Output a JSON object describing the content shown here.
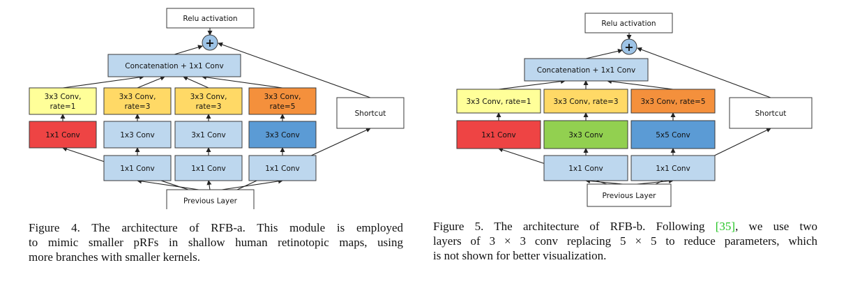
{
  "colors": {
    "blue": "#bdd7ee",
    "dark_blue": "#5b9bd5",
    "light_yellow": "#ffff99",
    "light_orange": "#ffd966",
    "orange": "#ffc000",
    "deep_orange": "#f4903c",
    "red": "#ee4444",
    "green": "#92d050",
    "white": "#ffffff",
    "stroke": "#3a3a3a",
    "plus": "#9dc3e6",
    "citation": "#22c322"
  },
  "figures": [
    {
      "id": "rfb-a",
      "nodes": {
        "relu": {
          "lines": [
            "Relu activation"
          ],
          "color": "white"
        },
        "concat": {
          "lines": [
            "Concatenation + 1x1 Conv"
          ],
          "color": "blue"
        },
        "b1_dil": {
          "lines": [
            "3x3 Conv,",
            "rate=1"
          ],
          "color": "light_yellow"
        },
        "b2_dil": {
          "lines": [
            "3x3 Conv,",
            "rate=3"
          ],
          "color": "light_orange"
        },
        "b3_dil": {
          "lines": [
            "3x3 Conv,",
            "rate=3"
          ],
          "color": "light_orange"
        },
        "b4_dil": {
          "lines": [
            "3x3 Conv,",
            "rate=5"
          ],
          "color": "deep_orange"
        },
        "shortcut": {
          "lines": [
            "Shortcut"
          ],
          "color": "white"
        },
        "b1_conv": {
          "lines": [
            "1x1 Conv"
          ],
          "color": "red"
        },
        "b2_conv": {
          "lines": [
            "1x3 Conv"
          ],
          "color": "blue"
        },
        "b3_conv": {
          "lines": [
            "3x1 Conv"
          ],
          "color": "blue"
        },
        "b4_conv": {
          "lines": [
            "3x3 Conv"
          ],
          "color": "dark_blue"
        },
        "b2_red": {
          "lines": [
            "1x1 Conv"
          ],
          "color": "blue"
        },
        "b3_red": {
          "lines": [
            "1x1 Conv"
          ],
          "color": "blue"
        },
        "b4_red": {
          "lines": [
            "1x1 Conv"
          ],
          "color": "blue"
        },
        "prev": {
          "lines": [
            "Previous Layer"
          ],
          "color": "white"
        }
      },
      "plus": "+",
      "caption": [
        "Figure 4.  The architecture of RFB-a.  This module is employed",
        "to mimic smaller pRFs in shallow human retinotopic maps, using",
        "more branches with smaller kernels."
      ]
    },
    {
      "id": "rfb-b",
      "nodes": {
        "relu": {
          "lines": [
            "Relu activation"
          ],
          "color": "white"
        },
        "concat": {
          "lines": [
            "Concatenation + 1x1 Conv"
          ],
          "color": "blue"
        },
        "b1_dil": {
          "lines": [
            "3x3 Conv, rate=1"
          ],
          "color": "light_yellow"
        },
        "b2_dil": {
          "lines": [
            "3x3 Conv, rate=3"
          ],
          "color": "light_orange"
        },
        "b3_dil": {
          "lines": [
            "3x3 Conv, rate=5"
          ],
          "color": "deep_orange"
        },
        "shortcut": {
          "lines": [
            "Shortcut"
          ],
          "color": "white"
        },
        "b1_conv": {
          "lines": [
            "1x1 Conv"
          ],
          "color": "red"
        },
        "b2_conv": {
          "lines": [
            "3x3 Conv"
          ],
          "color": "green"
        },
        "b3_conv": {
          "lines": [
            "5x5 Conv"
          ],
          "color": "dark_blue"
        },
        "b2_red": {
          "lines": [
            "1x1 Conv"
          ],
          "color": "blue"
        },
        "b3_red": {
          "lines": [
            "1x1 Conv"
          ],
          "color": "blue"
        },
        "prev": {
          "lines": [
            "Previous Layer"
          ],
          "color": "white"
        }
      },
      "plus": "+",
      "caption": {
        "line1_before": "Figure 5.  The architecture of RFB-b.  Following ",
        "citation": "[35]",
        "line1_after": ", we use two",
        "line2": "layers of 3 × 3 conv replacing 5 × 5 to reduce parameters, which",
        "line3": "is not shown for better visualization."
      }
    }
  ]
}
